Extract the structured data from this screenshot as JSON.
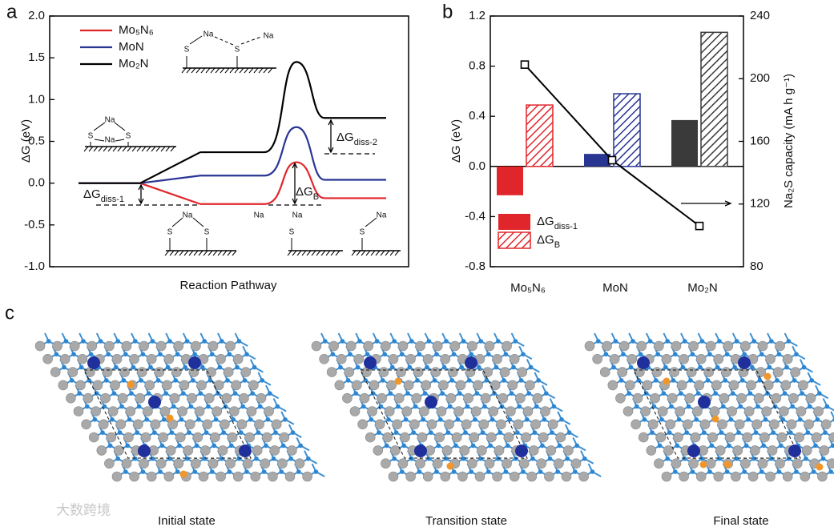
{
  "panel_labels": [
    "a",
    "b",
    "c"
  ],
  "chart_data": [
    {
      "type": "line",
      "y_label": "ΔG (eV)",
      "x_label": "Reaction Pathway",
      "categories": [
        null,
        null,
        null,
        null
      ],
      "series": [
        {
          "name": "Mo₅N₆",
          "color": "#e0262b",
          "values": [
            0,
            -0.25,
            0.25,
            -0.18
          ]
        },
        {
          "name": "MoN",
          "color": "#283593",
          "values": [
            0,
            0.09,
            0.67,
            0.04
          ]
        },
        {
          "name": "Mo₂N",
          "color": "#000000",
          "values": [
            0,
            0.37,
            1.45,
            0.78
          ]
        }
      ],
      "ylim": [
        -1,
        2
      ],
      "yticks": [
        {
          "value": -1,
          "label": "-1.0"
        },
        {
          "value": -0.5,
          "label": "-0.5"
        },
        {
          "value": 0,
          "label": "0.0"
        },
        {
          "value": 0.5,
          "label": "0.5"
        },
        {
          "value": 1,
          "label": "1.0"
        },
        {
          "value": 1.5,
          "label": "1.5"
        },
        {
          "value": 2,
          "label": "2.0"
        }
      ],
      "annotations": [
        {
          "text": "ΔG",
          "sub": "diss-1"
        },
        {
          "text": "ΔG",
          "sub": "B"
        },
        {
          "text": "ΔG",
          "sub": "diss-2"
        }
      ],
      "structure_labels": [
        [
          "S",
          "S",
          "Na",
          "Na"
        ],
        [
          "Na",
          "S",
          "S",
          "Na"
        ],
        [
          "Na",
          "S",
          "S"
        ],
        [
          "Na",
          "Na",
          "S"
        ],
        [
          "Na",
          "S"
        ]
      ]
    },
    {
      "type": "bar",
      "y_label": "ΔG (eV)",
      "y2_label": "Na₂S capacity (mA h g⁻¹)",
      "categories": [
        "Mo₅N₆",
        "MoN",
        "Mo₂N"
      ],
      "series": [
        {
          "name": "ΔG",
          "name_sub": "diss-1",
          "colors": [
            "#e0262b",
            "#283593",
            "#3a3a3a"
          ],
          "values": [
            -0.23,
            0.1,
            0.37
          ]
        },
        {
          "name": "ΔG",
          "name_sub": "B",
          "hatch": true,
          "colors": [
            "#e0262b",
            "#283593",
            "#3a3a3a"
          ],
          "values": [
            0.49,
            0.58,
            1.07
          ]
        },
        {
          "type": "line",
          "axis": "y2",
          "color": "#000000",
          "values": [
            209,
            148,
            106
          ]
        }
      ],
      "ylim": [
        -0.8,
        1.2
      ],
      "yticks": [
        -0.8,
        -0.4,
        {
          "value": 0,
          "label": "0.0"
        },
        0.4,
        0.8,
        1.2
      ],
      "y2lim": [
        80,
        240
      ],
      "y2ticks": [
        80,
        120,
        160,
        200,
        240
      ]
    }
  ],
  "panel_c": {
    "captions": [
      "Initial state",
      "Transition state",
      "Final state"
    ]
  },
  "watermark": "大数跨境"
}
